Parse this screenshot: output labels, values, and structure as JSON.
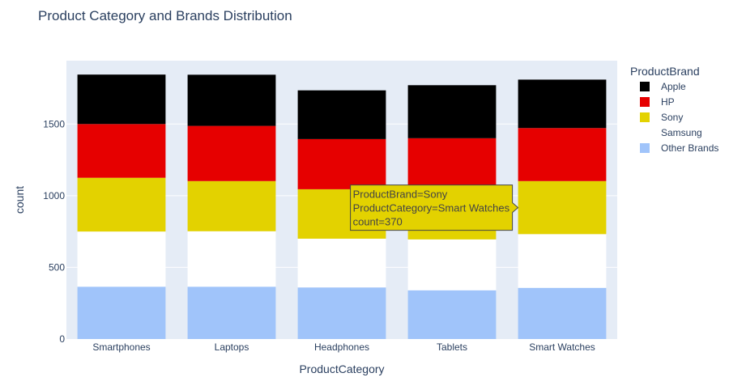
{
  "chart_data": {
    "type": "bar",
    "stacked": true,
    "title": "Product Category and Brands Distribution",
    "xlabel": "ProductCategory",
    "ylabel": "count",
    "ylim": [
      0,
      1942
    ],
    "yticks": [
      0,
      500,
      1000,
      1500
    ],
    "grid": true,
    "legend": {
      "title": "ProductBrand",
      "placement": "right"
    },
    "categories": [
      "Smartphones",
      "Laptops",
      "Headphones",
      "Tablets",
      "Smart Watches"
    ],
    "series": [
      {
        "name": "Other Brands",
        "color": "#a0c4fa",
        "values": [
          365,
          365,
          360,
          340,
          357
        ]
      },
      {
        "name": "Samsung",
        "color": "#ffffff",
        "values": [
          385,
          387,
          340,
          355,
          375
        ]
      },
      {
        "name": "Sony",
        "color": "#e3d200",
        "values": [
          375,
          350,
          345,
          348,
          370
        ]
      },
      {
        "name": "HP",
        "color": "#e60000",
        "values": [
          375,
          385,
          350,
          358,
          370
        ]
      },
      {
        "name": "Apple",
        "color": "#000000",
        "values": [
          345,
          357,
          340,
          370,
          338
        ]
      }
    ],
    "tooltip": {
      "lines": [
        "ProductBrand=Sony",
        "ProductCategory=Smart Watches",
        "count=370"
      ],
      "series": "Sony",
      "category": "Smart Watches"
    }
  }
}
